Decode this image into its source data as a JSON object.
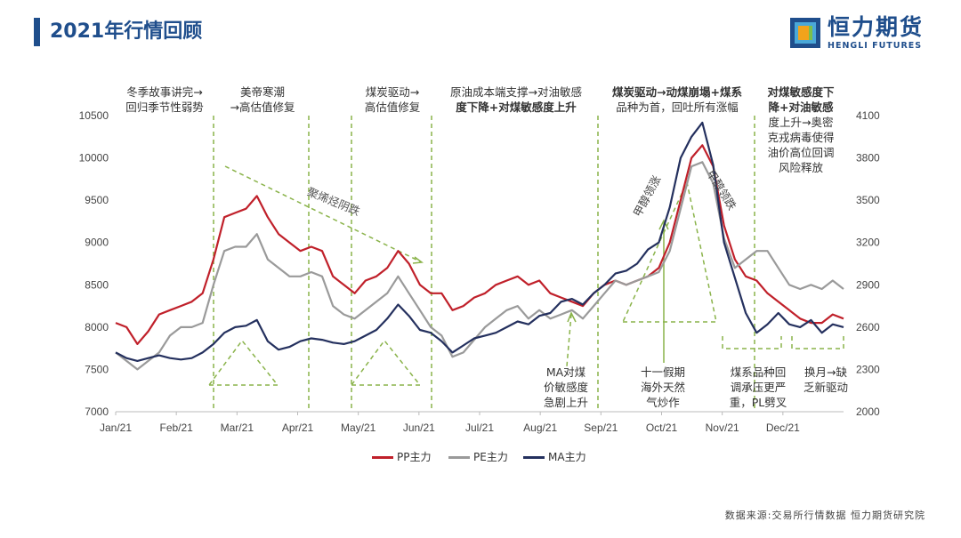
{
  "header": {
    "title": "2021年行情回顾",
    "logo_cn": "恒力期货",
    "logo_en": "HENGLI FUTURES",
    "accent_color": "#1f4e8c"
  },
  "source": "数据来源:交易所行情数据  恒力期货研究院",
  "annotations": {
    "a1": [
      "冬季故事讲完→",
      "回归季节性弱势"
    ],
    "a2": [
      "美帝寒潮",
      "→高估值修复"
    ],
    "a3": [
      "煤炭驱动→",
      "高估值修复"
    ],
    "a4": [
      "原油成本端支撑→对油敏感",
      "度下降+对煤敏感度上升"
    ],
    "a5": [
      "煤炭驱动→动煤崩塌+煤系",
      "品种为首，回吐所有涨幅"
    ],
    "a6": [
      "对煤敏感度下",
      "降+对油敏感",
      "度上升→奥密",
      "克戎病毒使得",
      "油价高位回调",
      "风险释放"
    ],
    "diag": "聚烯烃阴跌",
    "ma_sens": [
      "MA对煤",
      "价敏感度",
      "急剧上升"
    ],
    "holiday": [
      "十一假期",
      "海外天然",
      "气炒作"
    ],
    "coal_pull": [
      "煤系品种回",
      "调承压更严",
      "重，PL劈叉"
    ],
    "month_switch": [
      "换月→缺",
      "乏新驱动"
    ],
    "ma_lead_up": "甲醇领涨",
    "ma_lead_down": "甲醇领跌"
  },
  "chart_data": {
    "type": "line",
    "title": "",
    "x_labels": [
      "Jan/21",
      "Feb/21",
      "Mar/21",
      "Apr/21",
      "May/21",
      "Jun/21",
      "Jul/21",
      "Aug/21",
      "Sep/21",
      "Oct/21",
      "Nov/21",
      "Dec/21"
    ],
    "left_axis": {
      "min": 7000,
      "max": 10500,
      "ticks": [
        7000,
        7500,
        8000,
        8500,
        9000,
        9500,
        10000,
        10500
      ]
    },
    "right_axis": {
      "min": 2000,
      "max": 4100,
      "ticks": [
        2000,
        2300,
        2600,
        2900,
        3200,
        3500,
        3800,
        4100
      ]
    },
    "grid": false,
    "legend_position": "bottom",
    "series": [
      {
        "name": "PP主力",
        "axis": "left",
        "color": "#c0202a",
        "values": [
          8050,
          8000,
          7800,
          7950,
          8150,
          8200,
          8250,
          8300,
          8400,
          8800,
          9300,
          9350,
          9400,
          9550,
          9300,
          9100,
          9000,
          8900,
          8950,
          8900,
          8600,
          8500,
          8400,
          8550,
          8600,
          8700,
          8900,
          8750,
          8500,
          8400,
          8400,
          8200,
          8250,
          8350,
          8400,
          8500,
          8550,
          8600,
          8500,
          8550,
          8400,
          8350,
          8300,
          8250,
          8400,
          8500,
          8550,
          8500,
          8550,
          8600,
          8700,
          9000,
          9500,
          10000,
          10150,
          9900,
          9200,
          8800,
          8600,
          8550,
          8400,
          8300,
          8200,
          8100,
          8050,
          8050,
          8150,
          8100
        ]
      },
      {
        "name": "PE主力",
        "axis": "left",
        "color": "#9a9a9a",
        "values": [
          7700,
          7600,
          7500,
          7600,
          7700,
          7900,
          8000,
          8000,
          8050,
          8500,
          8900,
          8950,
          8950,
          9100,
          8800,
          8700,
          8600,
          8600,
          8650,
          8600,
          8250,
          8150,
          8100,
          8200,
          8300,
          8400,
          8600,
          8400,
          8200,
          8000,
          7900,
          7650,
          7700,
          7850,
          8000,
          8100,
          8200,
          8250,
          8100,
          8200,
          8100,
          8150,
          8200,
          8100,
          8250,
          8400,
          8550,
          8500,
          8550,
          8600,
          8650,
          8900,
          9400,
          9900,
          9950,
          9700,
          9050,
          8700,
          8800,
          8900,
          8900,
          8700,
          8500,
          8450,
          8500,
          8450,
          8550,
          8450
        ]
      },
      {
        "name": "MA主力",
        "axis": "right",
        "color": "#24305e",
        "values": [
          2420,
          2380,
          2360,
          2380,
          2400,
          2380,
          2370,
          2380,
          2420,
          2480,
          2560,
          2600,
          2610,
          2650,
          2500,
          2440,
          2460,
          2500,
          2520,
          2510,
          2490,
          2480,
          2500,
          2540,
          2580,
          2660,
          2760,
          2680,
          2580,
          2560,
          2500,
          2420,
          2470,
          2520,
          2540,
          2560,
          2600,
          2640,
          2620,
          2680,
          2700,
          2780,
          2800,
          2760,
          2840,
          2900,
          2980,
          3000,
          3050,
          3150,
          3200,
          3450,
          3800,
          3950,
          4050,
          3750,
          3200,
          2950,
          2700,
          2560,
          2620,
          2700,
          2620,
          2600,
          2650,
          2560,
          2620,
          2600
        ]
      }
    ]
  },
  "legend": {
    "pp": "PP主力",
    "pe": "PE主力",
    "ma": "MA主力"
  }
}
